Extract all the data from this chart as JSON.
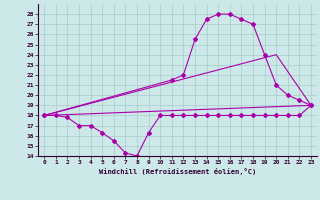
{
  "xlabel": "Windchill (Refroidissement éolien,°C)",
  "bg_color": "#cce8e8",
  "grid_color": "#aacccc",
  "line_color": "#aa00aa",
  "xlim": [
    -0.5,
    23.5
  ],
  "ylim": [
    14,
    29
  ],
  "xticks": [
    0,
    1,
    2,
    3,
    4,
    5,
    6,
    7,
    8,
    9,
    10,
    11,
    12,
    13,
    14,
    15,
    16,
    17,
    18,
    19,
    20,
    21,
    22,
    23
  ],
  "yticks": [
    14,
    15,
    16,
    17,
    18,
    19,
    20,
    21,
    22,
    23,
    24,
    25,
    26,
    27,
    28
  ],
  "line1_x": [
    0,
    1,
    2,
    3,
    4,
    5,
    6,
    7,
    8,
    9,
    10,
    11,
    12,
    13,
    14,
    15,
    16,
    17,
    18,
    19,
    20,
    21,
    22,
    23
  ],
  "line1_y": [
    18,
    18,
    17.8,
    17,
    17,
    16.3,
    15.5,
    14.3,
    14,
    16.3,
    18,
    18,
    18,
    18,
    18,
    18,
    18,
    18,
    18,
    18,
    18,
    18,
    18,
    19
  ],
  "line2_x": [
    0,
    11,
    12,
    13,
    14,
    15,
    16,
    17,
    18,
    19,
    20,
    21,
    22,
    23
  ],
  "line2_y": [
    18,
    21.5,
    22,
    25.5,
    27.5,
    28,
    28,
    27.5,
    27,
    24,
    21,
    20,
    19.5,
    19
  ],
  "line3_x": [
    0,
    23
  ],
  "line3_y": [
    18,
    19
  ],
  "line4_x": [
    0,
    20,
    23
  ],
  "line4_y": [
    18,
    24,
    19
  ]
}
